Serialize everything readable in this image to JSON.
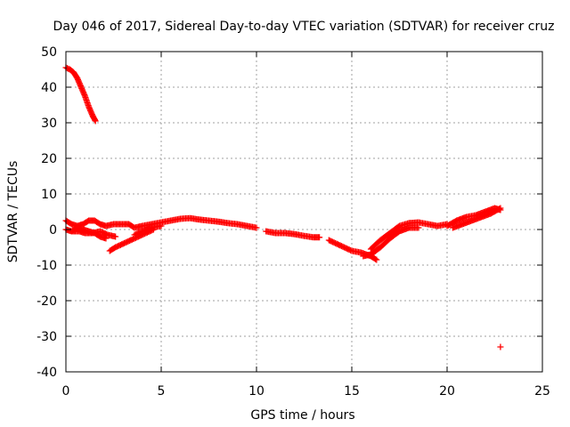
{
  "colors": {
    "series": "#ff0000",
    "axis": "#000000",
    "grid": "#a0a0a0",
    "background": "#ffffff"
  },
  "chart_data": {
    "type": "scatter",
    "title": "Day 046 of 2017, Sidereal Day-to-day VTEC variation (SDTVAR) for receiver cruz",
    "xlabel": "GPS time / hours",
    "ylabel": "SDTVAR / TECUs",
    "xlim": [
      0,
      25
    ],
    "ylim": [
      -40,
      50
    ],
    "xticks": [
      0,
      5,
      10,
      15,
      20,
      25
    ],
    "xtick_labels": [
      "0",
      "5",
      "10",
      "15",
      "20",
      "25"
    ],
    "yticks": [
      -40,
      -30,
      -20,
      -10,
      0,
      10,
      20,
      30,
      40,
      50
    ],
    "ytick_labels": [
      "-40",
      "-30",
      "-20",
      "-10",
      "0",
      "10",
      "20",
      "30",
      "40",
      "50"
    ],
    "grid": true,
    "marker": "+",
    "series": [
      {
        "name": "SDTVAR",
        "description": "dense plus-marker traces; points approximated",
        "segments": [
          [
            [
              0.0,
              45.5
            ],
            [
              0.2,
              45.0
            ],
            [
              0.4,
              44.2
            ],
            [
              0.6,
              42.5
            ],
            [
              0.8,
              40.0
            ],
            [
              1.0,
              37.5
            ],
            [
              1.2,
              34.5
            ],
            [
              1.4,
              32.0
            ],
            [
              1.55,
              30.5
            ]
          ],
          [
            [
              0.0,
              2.5
            ],
            [
              0.3,
              1.5
            ],
            [
              0.6,
              1.0
            ],
            [
              0.9,
              1.5
            ],
            [
              1.2,
              2.5
            ],
            [
              1.5,
              2.5
            ],
            [
              1.8,
              1.5
            ],
            [
              2.1,
              1.0
            ],
            [
              2.5,
              1.5
            ],
            [
              2.9,
              1.5
            ],
            [
              3.3,
              1.5
            ],
            [
              3.6,
              0.5
            ],
            [
              4.0,
              1.0
            ],
            [
              4.5,
              1.5
            ],
            [
              5.0,
              2.0
            ],
            [
              5.5,
              2.5
            ],
            [
              6.0,
              3.0
            ],
            [
              6.5,
              3.2
            ],
            [
              7.0,
              2.8
            ],
            [
              7.5,
              2.5
            ],
            [
              8.0,
              2.2
            ],
            [
              8.5,
              1.8
            ],
            [
              9.0,
              1.5
            ],
            [
              9.5,
              1.0
            ],
            [
              10.0,
              0.5
            ]
          ],
          [
            [
              0.0,
              0.0
            ],
            [
              0.3,
              -0.5
            ],
            [
              0.7,
              -0.5
            ],
            [
              1.0,
              -1.0
            ],
            [
              1.4,
              -1.0
            ],
            [
              1.8,
              -0.5
            ],
            [
              2.2,
              -1.5
            ],
            [
              2.6,
              -2.0
            ]
          ],
          [
            [
              0.3,
              -0.5
            ],
            [
              0.6,
              0.5
            ],
            [
              0.9,
              0.0
            ],
            [
              1.2,
              -0.5
            ],
            [
              1.5,
              -1.0
            ],
            [
              1.8,
              -2.0
            ],
            [
              2.1,
              -2.5
            ]
          ],
          [
            [
              2.3,
              -6.0
            ],
            [
              2.6,
              -5.0
            ],
            [
              3.0,
              -4.0
            ],
            [
              3.4,
              -3.0
            ],
            [
              3.8,
              -2.0
            ],
            [
              4.2,
              -1.0
            ],
            [
              4.6,
              0.0
            ]
          ],
          [
            [
              3.6,
              -1.5
            ],
            [
              4.0,
              -0.5
            ],
            [
              4.5,
              0.5
            ],
            [
              5.0,
              1.0
            ]
          ],
          [
            [
              10.5,
              -0.5
            ],
            [
              11.0,
              -1.0
            ],
            [
              11.5,
              -1.0
            ],
            [
              12.0,
              -1.3
            ],
            [
              12.5,
              -1.8
            ],
            [
              13.0,
              -2.2
            ],
            [
              13.3,
              -2.2
            ]
          ],
          [
            [
              13.8,
              -3.0
            ],
            [
              14.2,
              -4.0
            ],
            [
              14.6,
              -5.0
            ],
            [
              15.0,
              -6.0
            ],
            [
              15.5,
              -6.5
            ],
            [
              16.0,
              -7.5
            ],
            [
              16.3,
              -8.5
            ]
          ],
          [
            [
              15.6,
              -7.5
            ],
            [
              16.0,
              -7.0
            ],
            [
              16.5,
              -5.0
            ],
            [
              17.0,
              -2.5
            ],
            [
              17.5,
              -0.5
            ],
            [
              18.0,
              0.5
            ],
            [
              18.5,
              0.5
            ]
          ],
          [
            [
              16.0,
              -5.5
            ],
            [
              16.5,
              -3.0
            ],
            [
              17.0,
              -1.0
            ],
            [
              17.5,
              1.0
            ],
            [
              18.0,
              1.8
            ],
            [
              18.5,
              2.0
            ],
            [
              19.0,
              1.5
            ],
            [
              19.5,
              1.0
            ],
            [
              20.0,
              1.5
            ]
          ],
          [
            [
              20.0,
              1.0
            ],
            [
              20.5,
              2.5
            ],
            [
              21.0,
              3.5
            ],
            [
              21.5,
              4.0
            ],
            [
              22.0,
              5.0
            ],
            [
              22.5,
              6.0
            ],
            [
              22.8,
              5.5
            ]
          ],
          [
            [
              20.3,
              0.5
            ],
            [
              20.8,
              1.5
            ],
            [
              21.3,
              2.5
            ],
            [
              21.8,
              3.5
            ],
            [
              22.3,
              4.5
            ],
            [
              22.8,
              6.0
            ]
          ]
        ],
        "isolated_points": [
          [
            22.8,
            -33.0
          ]
        ]
      }
    ]
  }
}
